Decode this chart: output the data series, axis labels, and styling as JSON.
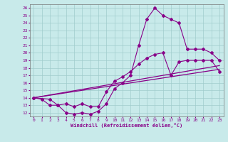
{
  "xlabel": "Windchill (Refroidissement éolien,°C)",
  "xlim": [
    -0.5,
    23.5
  ],
  "ylim": [
    11.5,
    26.5
  ],
  "yticks": [
    12,
    13,
    14,
    15,
    16,
    17,
    18,
    19,
    20,
    21,
    22,
    23,
    24,
    25,
    26
  ],
  "xticks": [
    0,
    1,
    2,
    3,
    4,
    5,
    6,
    7,
    8,
    9,
    10,
    11,
    12,
    13,
    14,
    15,
    16,
    17,
    18,
    19,
    20,
    21,
    22,
    23
  ],
  "bg_color": "#c8eaea",
  "grid_color": "#a0cccc",
  "line_color": "#880088",
  "line1_x": [
    0,
    1,
    2,
    3,
    4,
    5,
    6,
    7,
    8,
    9,
    10,
    11,
    12,
    13,
    14,
    15,
    16,
    17,
    18,
    19,
    20,
    21,
    22,
    23
  ],
  "line1_y": [
    14,
    13.8,
    13.0,
    13.0,
    12.0,
    11.8,
    12.0,
    11.8,
    12.2,
    13.2,
    15.2,
    16.0,
    17.0,
    21.0,
    24.5,
    26.0,
    25.0,
    24.5,
    24.0,
    20.5,
    20.5,
    20.5,
    20.0,
    19.0
  ],
  "line2_x": [
    0,
    2,
    3,
    4,
    5,
    6,
    7,
    8,
    9,
    10,
    11,
    12,
    13,
    14,
    15,
    16,
    17,
    18,
    19,
    20,
    21,
    22,
    23
  ],
  "line2_y": [
    14,
    13.8,
    13.0,
    13.2,
    12.8,
    13.2,
    12.8,
    12.8,
    14.8,
    16.2,
    16.8,
    17.5,
    18.5,
    19.3,
    19.8,
    20.0,
    17.0,
    18.8,
    19.0,
    19.0,
    19.0,
    19.0,
    17.5
  ],
  "line3_x": [
    0,
    23
  ],
  "line3_y": [
    14,
    17.8
  ],
  "line4_x": [
    0,
    23
  ],
  "line4_y": [
    14,
    18.3
  ]
}
